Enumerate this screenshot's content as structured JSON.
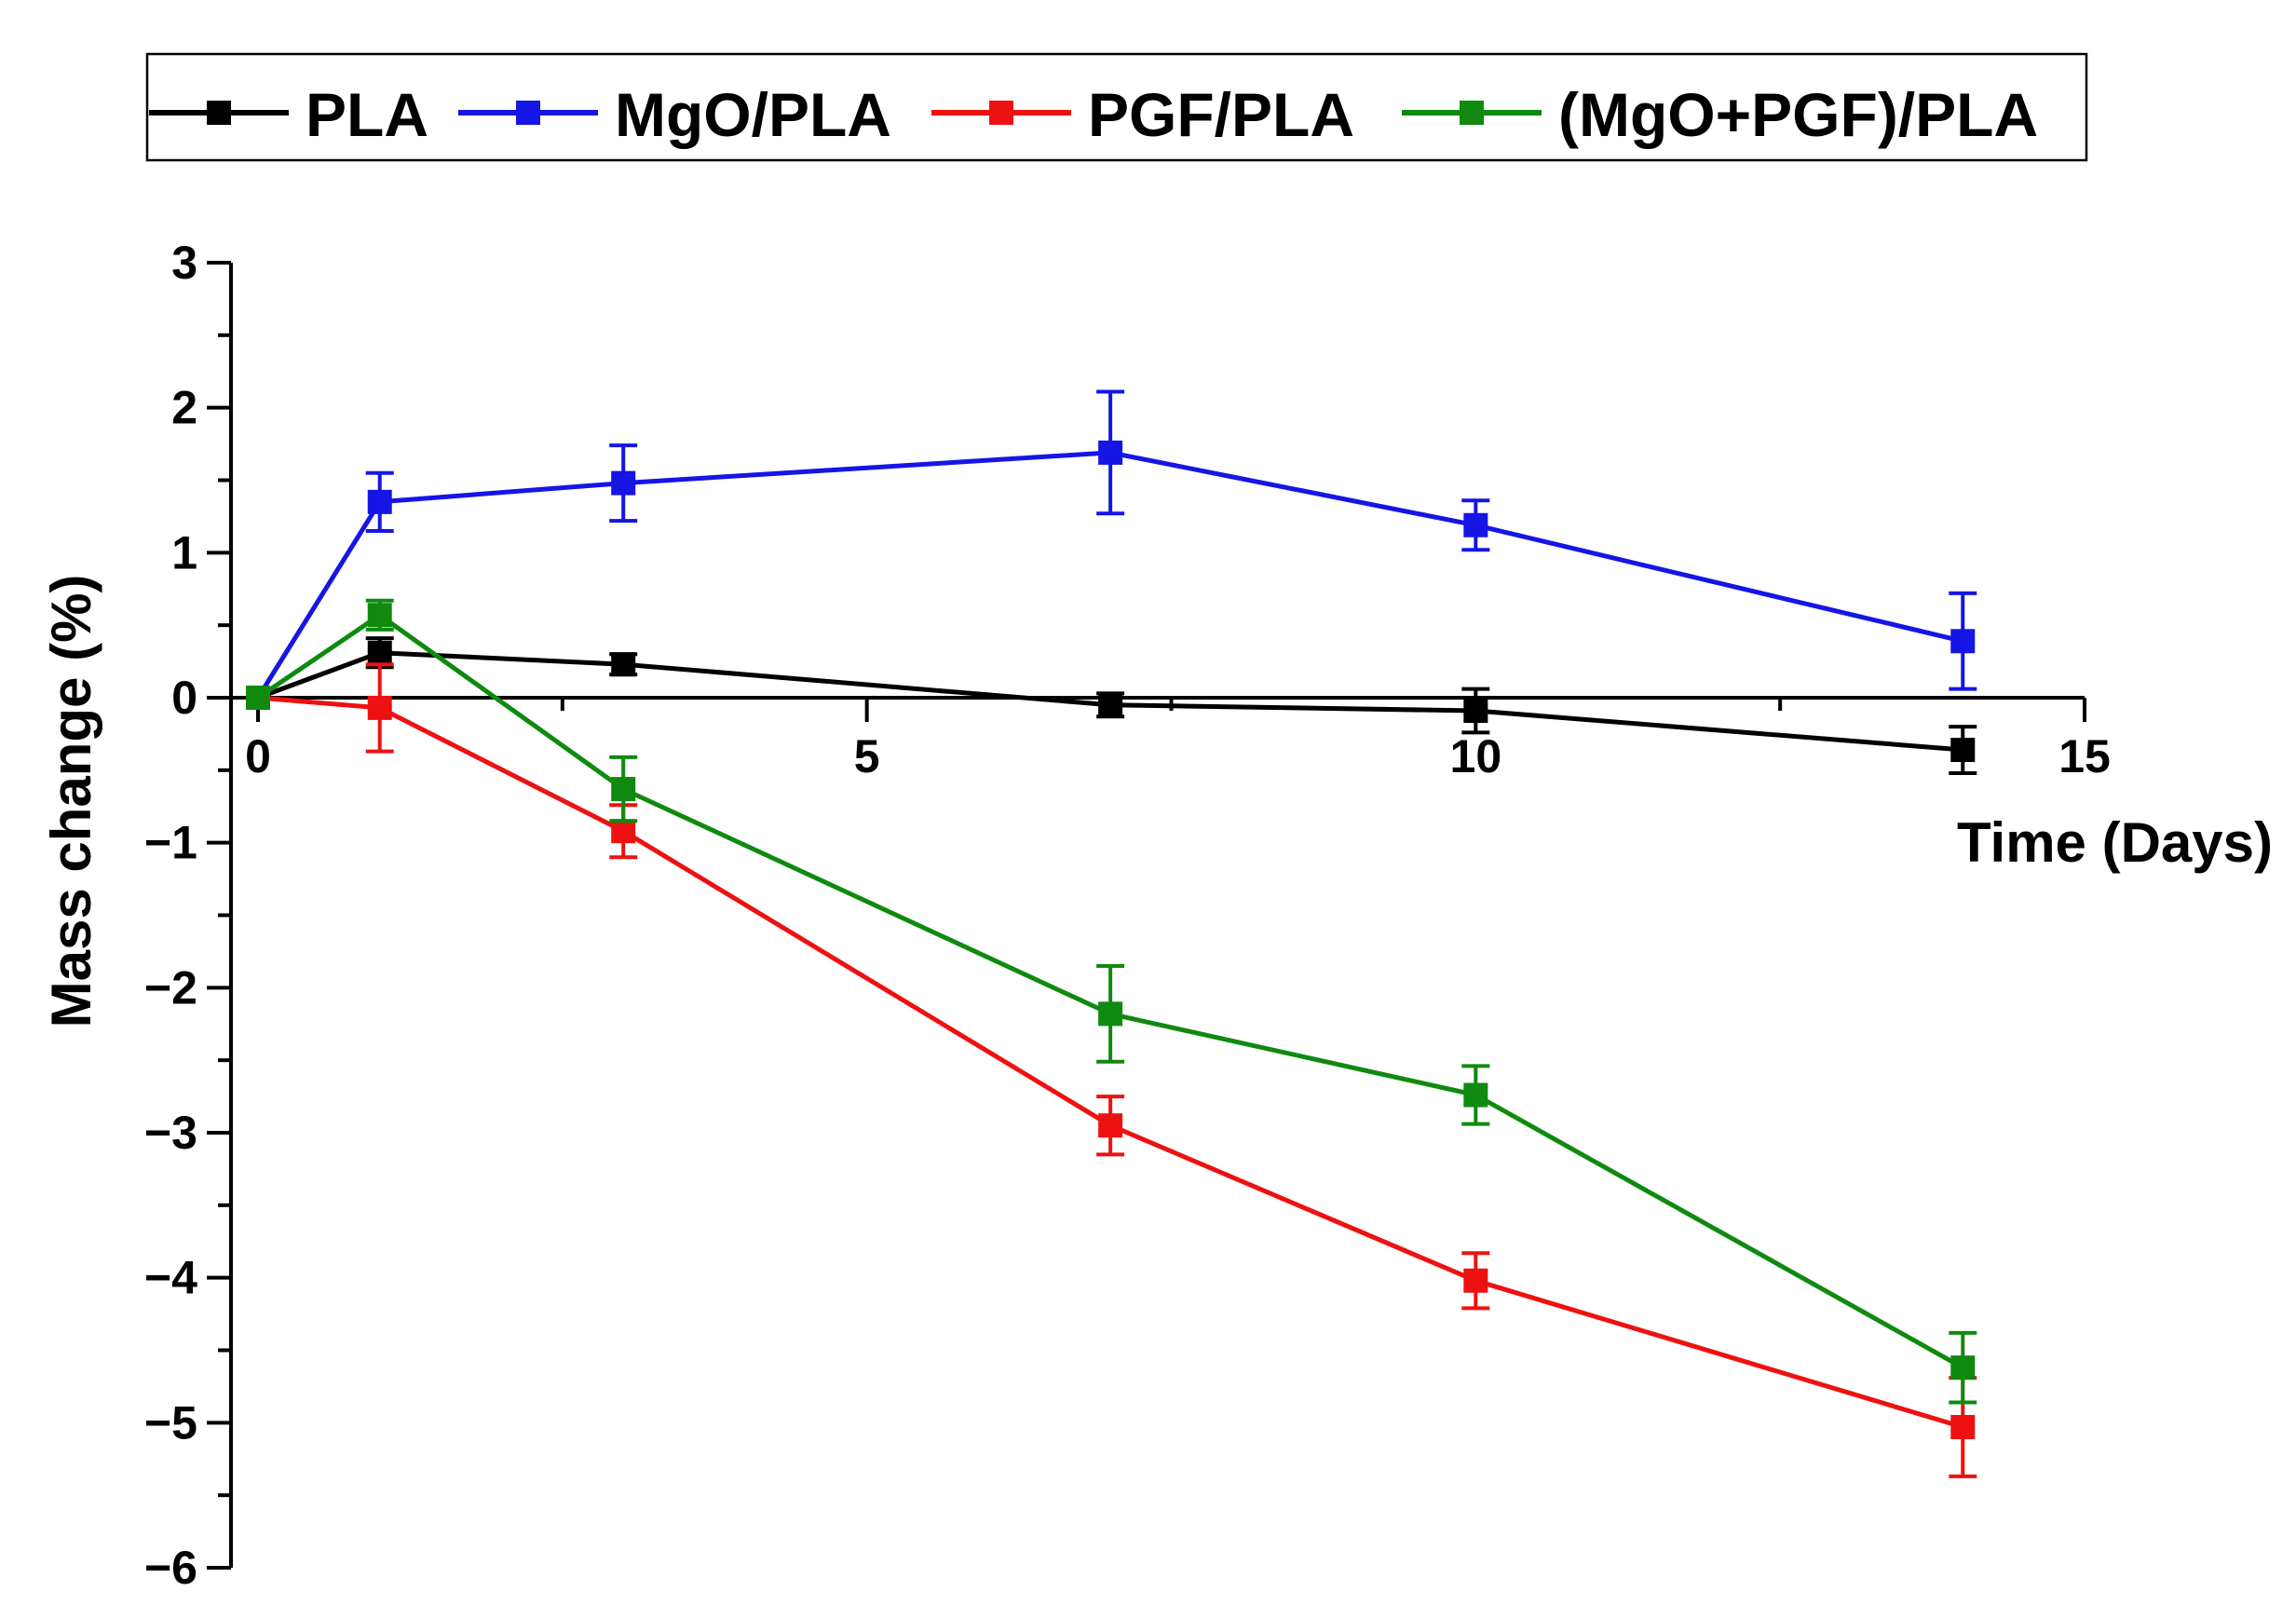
{
  "chart_data": {
    "type": "line",
    "title": "",
    "xlabel": "Time (Days)",
    "ylabel": "Mass change (%)",
    "xlim": [
      0,
      15
    ],
    "ylim": [
      -6,
      3
    ],
    "x_ticks": [
      0,
      5,
      10,
      15
    ],
    "y_ticks": [
      3,
      2,
      1,
      0,
      -1,
      -2,
      -3,
      -4,
      -5,
      -6
    ],
    "x_tick_labels": [
      "0",
      "5",
      "10",
      "15"
    ],
    "y_tick_labels": [
      "3",
      "2",
      "1",
      "0",
      "−1",
      "−2",
      "−3",
      "−4",
      "−5",
      "−6"
    ],
    "grid": false,
    "legend_position": "top",
    "x": [
      0,
      1,
      3,
      7,
      10,
      14
    ],
    "series": [
      {
        "name": "PLA",
        "color": "#000000",
        "values": [
          0,
          0.31,
          0.23,
          -0.05,
          -0.09,
          -0.36
        ],
        "errors": [
          0,
          0.1,
          0.07,
          0.08,
          0.15,
          0.16
        ]
      },
      {
        "name": "MgO/PLA",
        "color": "#1515e6",
        "values": [
          0,
          1.35,
          1.48,
          1.69,
          1.19,
          0.39
        ],
        "errors": [
          0,
          0.2,
          0.26,
          0.42,
          0.17,
          0.33
        ]
      },
      {
        "name": "PGF/PLA",
        "color": "#ee1111",
        "values": [
          0,
          -0.07,
          -0.92,
          -2.95,
          -4.02,
          -5.03
        ],
        "errors": [
          0,
          0.3,
          0.18,
          0.2,
          0.19,
          0.34
        ]
      },
      {
        "name": "(MgO+PGF)/PLA",
        "color": "#0f8a0f",
        "values": [
          0,
          0.57,
          -0.63,
          -2.18,
          -2.74,
          -4.62
        ],
        "errors": [
          0,
          0.1,
          0.22,
          0.33,
          0.2,
          0.24
        ]
      }
    ]
  }
}
